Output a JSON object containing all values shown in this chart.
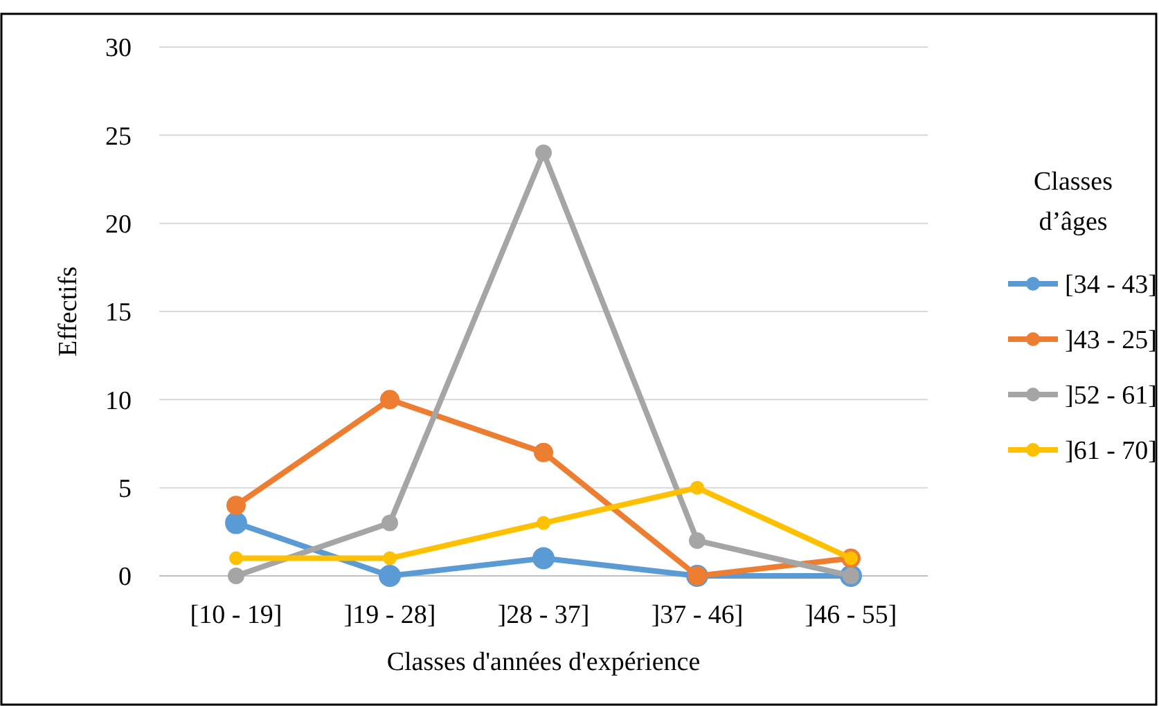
{
  "chart_data": {
    "type": "line",
    "xlabel": "Classes d'années d'expérience",
    "ylabel": "Effectifs",
    "legend_title": "Classes d’âges",
    "categories": [
      "[10 - 19]",
      "]19 - 28]",
      "]28 - 37]",
      "]37 - 46]",
      "]46 - 55]"
    ],
    "series": [
      {
        "name": "[34 - 43]",
        "color": "#5b9bd5",
        "values": [
          3,
          0,
          1,
          0,
          0
        ]
      },
      {
        "name": "]43 - 25]",
        "color": "#ed7d31",
        "values": [
          4,
          10,
          7,
          0,
          1
        ]
      },
      {
        "name": "]52 - 61]",
        "color": "#a5a5a5",
        "values": [
          0,
          3,
          24,
          2,
          0
        ]
      },
      {
        "name": "]61 - 70]",
        "color": "#ffc000",
        "values": [
          1,
          1,
          3,
          5,
          1
        ]
      }
    ],
    "ylim": [
      0,
      30
    ],
    "yticks": [
      0,
      5,
      10,
      15,
      20,
      25,
      30
    ],
    "grid": "y",
    "legend": "right",
    "marker": "circle",
    "line_style": "solid"
  }
}
